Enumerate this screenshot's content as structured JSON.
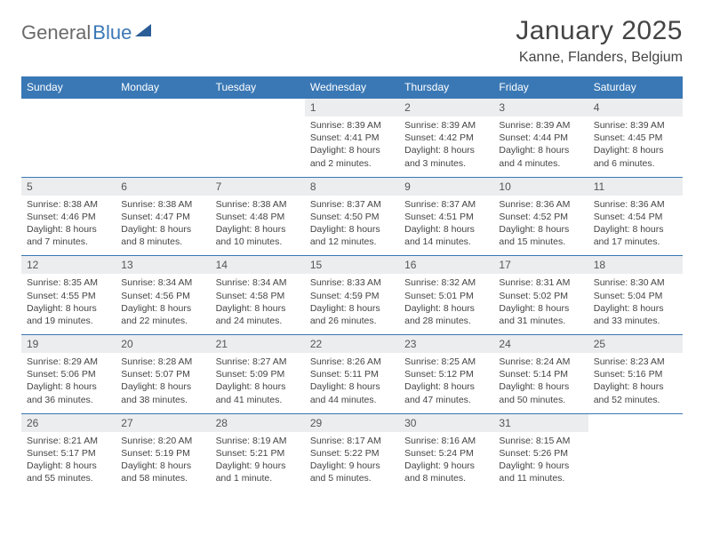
{
  "logo": {
    "part1": "General",
    "part2": "Blue"
  },
  "title": "January 2025",
  "location": "Kanne, Flanders, Belgium",
  "colors": {
    "header_bg": "#3a78b5",
    "header_text": "#ffffff",
    "daynum_bg": "#ebedef",
    "row_border": "#3a78b5",
    "body_text": "#444444",
    "page_bg": "#ffffff"
  },
  "day_headers": [
    "Sunday",
    "Monday",
    "Tuesday",
    "Wednesday",
    "Thursday",
    "Friday",
    "Saturday"
  ],
  "weeks": [
    [
      {
        "n": "",
        "sr": "",
        "ss": "",
        "dl": ""
      },
      {
        "n": "",
        "sr": "",
        "ss": "",
        "dl": ""
      },
      {
        "n": "",
        "sr": "",
        "ss": "",
        "dl": ""
      },
      {
        "n": "1",
        "sr": "Sunrise: 8:39 AM",
        "ss": "Sunset: 4:41 PM",
        "dl": "Daylight: 8 hours and 2 minutes."
      },
      {
        "n": "2",
        "sr": "Sunrise: 8:39 AM",
        "ss": "Sunset: 4:42 PM",
        "dl": "Daylight: 8 hours and 3 minutes."
      },
      {
        "n": "3",
        "sr": "Sunrise: 8:39 AM",
        "ss": "Sunset: 4:44 PM",
        "dl": "Daylight: 8 hours and 4 minutes."
      },
      {
        "n": "4",
        "sr": "Sunrise: 8:39 AM",
        "ss": "Sunset: 4:45 PM",
        "dl": "Daylight: 8 hours and 6 minutes."
      }
    ],
    [
      {
        "n": "5",
        "sr": "Sunrise: 8:38 AM",
        "ss": "Sunset: 4:46 PM",
        "dl": "Daylight: 8 hours and 7 minutes."
      },
      {
        "n": "6",
        "sr": "Sunrise: 8:38 AM",
        "ss": "Sunset: 4:47 PM",
        "dl": "Daylight: 8 hours and 8 minutes."
      },
      {
        "n": "7",
        "sr": "Sunrise: 8:38 AM",
        "ss": "Sunset: 4:48 PM",
        "dl": "Daylight: 8 hours and 10 minutes."
      },
      {
        "n": "8",
        "sr": "Sunrise: 8:37 AM",
        "ss": "Sunset: 4:50 PM",
        "dl": "Daylight: 8 hours and 12 minutes."
      },
      {
        "n": "9",
        "sr": "Sunrise: 8:37 AM",
        "ss": "Sunset: 4:51 PM",
        "dl": "Daylight: 8 hours and 14 minutes."
      },
      {
        "n": "10",
        "sr": "Sunrise: 8:36 AM",
        "ss": "Sunset: 4:52 PM",
        "dl": "Daylight: 8 hours and 15 minutes."
      },
      {
        "n": "11",
        "sr": "Sunrise: 8:36 AM",
        "ss": "Sunset: 4:54 PM",
        "dl": "Daylight: 8 hours and 17 minutes."
      }
    ],
    [
      {
        "n": "12",
        "sr": "Sunrise: 8:35 AM",
        "ss": "Sunset: 4:55 PM",
        "dl": "Daylight: 8 hours and 19 minutes."
      },
      {
        "n": "13",
        "sr": "Sunrise: 8:34 AM",
        "ss": "Sunset: 4:56 PM",
        "dl": "Daylight: 8 hours and 22 minutes."
      },
      {
        "n": "14",
        "sr": "Sunrise: 8:34 AM",
        "ss": "Sunset: 4:58 PM",
        "dl": "Daylight: 8 hours and 24 minutes."
      },
      {
        "n": "15",
        "sr": "Sunrise: 8:33 AM",
        "ss": "Sunset: 4:59 PM",
        "dl": "Daylight: 8 hours and 26 minutes."
      },
      {
        "n": "16",
        "sr": "Sunrise: 8:32 AM",
        "ss": "Sunset: 5:01 PM",
        "dl": "Daylight: 8 hours and 28 minutes."
      },
      {
        "n": "17",
        "sr": "Sunrise: 8:31 AM",
        "ss": "Sunset: 5:02 PM",
        "dl": "Daylight: 8 hours and 31 minutes."
      },
      {
        "n": "18",
        "sr": "Sunrise: 8:30 AM",
        "ss": "Sunset: 5:04 PM",
        "dl": "Daylight: 8 hours and 33 minutes."
      }
    ],
    [
      {
        "n": "19",
        "sr": "Sunrise: 8:29 AM",
        "ss": "Sunset: 5:06 PM",
        "dl": "Daylight: 8 hours and 36 minutes."
      },
      {
        "n": "20",
        "sr": "Sunrise: 8:28 AM",
        "ss": "Sunset: 5:07 PM",
        "dl": "Daylight: 8 hours and 38 minutes."
      },
      {
        "n": "21",
        "sr": "Sunrise: 8:27 AM",
        "ss": "Sunset: 5:09 PM",
        "dl": "Daylight: 8 hours and 41 minutes."
      },
      {
        "n": "22",
        "sr": "Sunrise: 8:26 AM",
        "ss": "Sunset: 5:11 PM",
        "dl": "Daylight: 8 hours and 44 minutes."
      },
      {
        "n": "23",
        "sr": "Sunrise: 8:25 AM",
        "ss": "Sunset: 5:12 PM",
        "dl": "Daylight: 8 hours and 47 minutes."
      },
      {
        "n": "24",
        "sr": "Sunrise: 8:24 AM",
        "ss": "Sunset: 5:14 PM",
        "dl": "Daylight: 8 hours and 50 minutes."
      },
      {
        "n": "25",
        "sr": "Sunrise: 8:23 AM",
        "ss": "Sunset: 5:16 PM",
        "dl": "Daylight: 8 hours and 52 minutes."
      }
    ],
    [
      {
        "n": "26",
        "sr": "Sunrise: 8:21 AM",
        "ss": "Sunset: 5:17 PM",
        "dl": "Daylight: 8 hours and 55 minutes."
      },
      {
        "n": "27",
        "sr": "Sunrise: 8:20 AM",
        "ss": "Sunset: 5:19 PM",
        "dl": "Daylight: 8 hours and 58 minutes."
      },
      {
        "n": "28",
        "sr": "Sunrise: 8:19 AM",
        "ss": "Sunset: 5:21 PM",
        "dl": "Daylight: 9 hours and 1 minute."
      },
      {
        "n": "29",
        "sr": "Sunrise: 8:17 AM",
        "ss": "Sunset: 5:22 PM",
        "dl": "Daylight: 9 hours and 5 minutes."
      },
      {
        "n": "30",
        "sr": "Sunrise: 8:16 AM",
        "ss": "Sunset: 5:24 PM",
        "dl": "Daylight: 9 hours and 8 minutes."
      },
      {
        "n": "31",
        "sr": "Sunrise: 8:15 AM",
        "ss": "Sunset: 5:26 PM",
        "dl": "Daylight: 9 hours and 11 minutes."
      },
      {
        "n": "",
        "sr": "",
        "ss": "",
        "dl": ""
      }
    ]
  ]
}
